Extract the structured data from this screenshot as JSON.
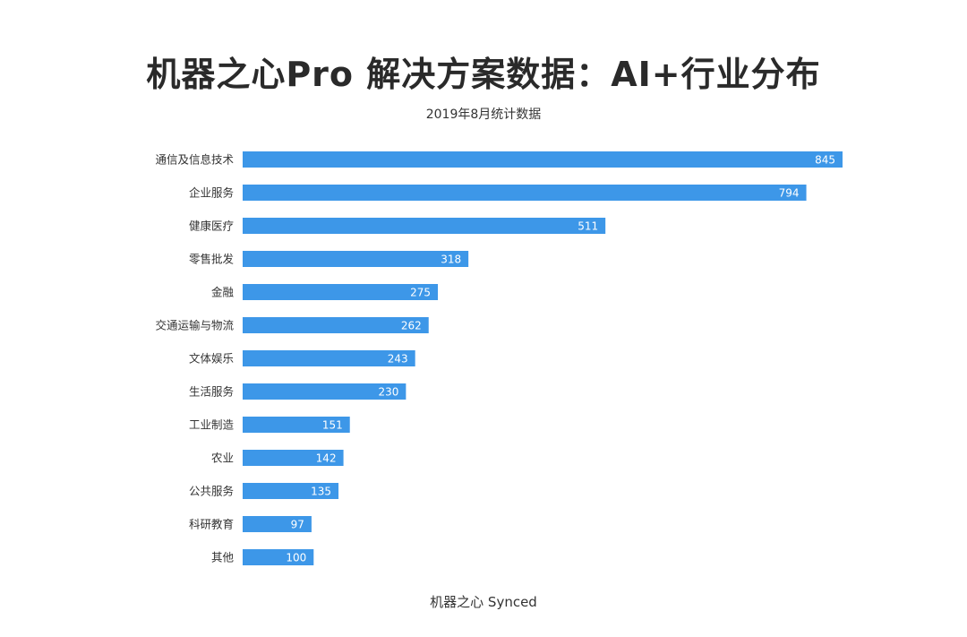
{
  "title": "机器之心Pro 解决方案数据：AI+行业分布",
  "subtitle": "2019年8月统计数据",
  "footer": "机器之心 Synced",
  "colors": {
    "bar": "#3d97e8",
    "bar_shadow": "#2f7ccc",
    "value_label": "#ffffff",
    "category_label": "#333333"
  },
  "chart_data": {
    "type": "bar",
    "orientation": "horizontal",
    "categories": [
      "通信及信息技术",
      "企业服务",
      "健康医疗",
      "零售批发",
      "金融",
      "交通运输与物流",
      "文体娱乐",
      "生活服务",
      "工业制造",
      "农业",
      "公共服务",
      "科研教育",
      "其他"
    ],
    "values": [
      845,
      794,
      511,
      318,
      275,
      262,
      243,
      230,
      151,
      142,
      135,
      97,
      100
    ],
    "title": "机器之心Pro 解决方案数据：AI+行业分布",
    "subtitle": "2019年8月统计数据",
    "xlabel": "",
    "ylabel": "",
    "xlim": [
      0,
      845
    ],
    "grid": false,
    "data_labels": true
  }
}
